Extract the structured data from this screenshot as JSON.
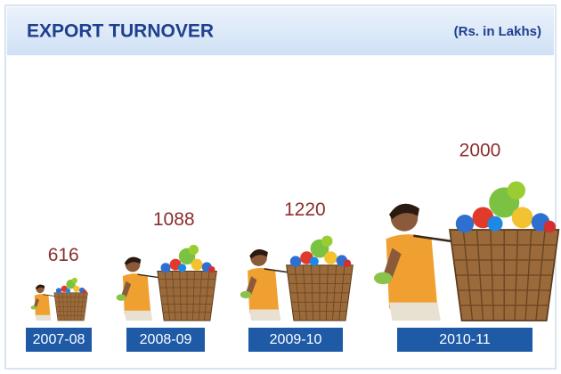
{
  "chart_data": {
    "type": "pictogram",
    "title": "EXPORT TURNOVER",
    "subtitle": "(Rs. in Lakhs)",
    "categories": [
      "2007-08",
      "2008-09",
      "2009-10",
      "2010-11"
    ],
    "values": [
      616,
      1088,
      1220,
      2000
    ],
    "label_color": "#8b2e2e",
    "category_box_color": "#1f5aa6"
  }
}
